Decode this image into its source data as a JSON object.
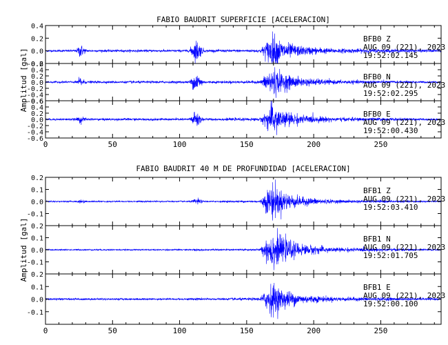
{
  "chart_data": [
    {
      "type": "line",
      "title": "FABIO BAUDRIT SUPERFICIE [ACELERACION]",
      "ylabel": "Amplitud [gal]",
      "xlabel": "",
      "xlim": [
        0,
        295
      ],
      "xticks": [
        0,
        50,
        100,
        150,
        200,
        250
      ],
      "color": "#0000ff",
      "series": [
        {
          "name": "BFB0 Z",
          "date": "AUG 09 (221), 2023",
          "time": "19:52:02.145",
          "ylim": [
            -0.2,
            0.4
          ],
          "yticks": [
            0.4,
            0.2,
            0.0,
            -0.2
          ],
          "ytick_labels": [
            "0.4",
            "0.2",
            "0.0",
            "-0.2"
          ],
          "envelope": [
            {
              "x": 0,
              "amp": 0.018
            },
            {
              "x": 23,
              "amp": 0.02
            },
            {
              "x": 26,
              "amp": 0.13
            },
            {
              "x": 28,
              "amp": 0.07
            },
            {
              "x": 31,
              "amp": 0.02
            },
            {
              "x": 107,
              "amp": 0.02
            },
            {
              "x": 110,
              "amp": 0.12
            },
            {
              "x": 113,
              "amp": 0.2
            },
            {
              "x": 116,
              "amp": 0.08
            },
            {
              "x": 119,
              "amp": 0.02
            },
            {
              "x": 160,
              "amp": 0.025
            },
            {
              "x": 165,
              "amp": 0.16
            },
            {
              "x": 170,
              "amp": 0.3
            },
            {
              "x": 176,
              "amp": 0.16
            },
            {
              "x": 190,
              "amp": 0.08
            },
            {
              "x": 215,
              "amp": 0.04
            },
            {
              "x": 295,
              "amp": 0.02
            }
          ]
        },
        {
          "name": "BFB0 N",
          "date": "AUG 09 (221), 2023",
          "time": "19:52:02.295",
          "ylim": [
            -0.6,
            0.6
          ],
          "yticks": [
            0.6,
            0.4,
            0.2,
            0.0,
            -0.2,
            -0.4,
            -0.6
          ],
          "ytick_labels": [
            "0.6",
            "0.4",
            "0.2",
            "0.0",
            "-0.2",
            "-0.4",
            "-0.6"
          ],
          "envelope": [
            {
              "x": 0,
              "amp": 0.03
            },
            {
              "x": 23,
              "amp": 0.04
            },
            {
              "x": 26,
              "amp": 0.2
            },
            {
              "x": 28,
              "amp": 0.1
            },
            {
              "x": 31,
              "amp": 0.04
            },
            {
              "x": 107,
              "amp": 0.04
            },
            {
              "x": 110,
              "amp": 0.22
            },
            {
              "x": 113,
              "amp": 0.36
            },
            {
              "x": 116,
              "amp": 0.15
            },
            {
              "x": 119,
              "amp": 0.04
            },
            {
              "x": 160,
              "amp": 0.05
            },
            {
              "x": 165,
              "amp": 0.3
            },
            {
              "x": 170,
              "amp": 0.55
            },
            {
              "x": 176,
              "amp": 0.3
            },
            {
              "x": 190,
              "amp": 0.15
            },
            {
              "x": 215,
              "amp": 0.07
            },
            {
              "x": 295,
              "amp": 0.03
            }
          ]
        },
        {
          "name": "BFB0 E",
          "date": "AUG 09 (221), 2023",
          "time": "19:52:00.430",
          "ylim": [
            -0.6,
            0.6
          ],
          "yticks": [
            0.6,
            0.4,
            0.2,
            0.0,
            -0.2,
            -0.4,
            -0.6
          ],
          "ytick_labels": [
            "0.6",
            "0.4",
            "0.2",
            "0.0",
            "-0.2",
            "-0.4",
            "-0.6"
          ],
          "envelope": [
            {
              "x": 0,
              "amp": 0.03
            },
            {
              "x": 23,
              "amp": 0.04
            },
            {
              "x": 26,
              "amp": 0.16
            },
            {
              "x": 28,
              "amp": 0.08
            },
            {
              "x": 31,
              "amp": 0.04
            },
            {
              "x": 107,
              "amp": 0.04
            },
            {
              "x": 110,
              "amp": 0.2
            },
            {
              "x": 113,
              "amp": 0.3
            },
            {
              "x": 116,
              "amp": 0.12
            },
            {
              "x": 119,
              "amp": 0.04
            },
            {
              "x": 160,
              "amp": 0.05
            },
            {
              "x": 165,
              "amp": 0.3
            },
            {
              "x": 170,
              "amp": 0.58
            },
            {
              "x": 176,
              "amp": 0.3
            },
            {
              "x": 190,
              "amp": 0.15
            },
            {
              "x": 215,
              "amp": 0.07
            },
            {
              "x": 295,
              "amp": 0.03
            }
          ]
        }
      ]
    },
    {
      "type": "line",
      "title": "FABIO BAUDRIT 40 M DE PROFUNDIDAD [ACELERACION]",
      "ylabel": "Amplitud [gal]",
      "xlabel": "",
      "xlim": [
        0,
        295
      ],
      "xticks": [
        0,
        50,
        100,
        150,
        200,
        250
      ],
      "color": "#0000ff",
      "series": [
        {
          "name": "BFB1 Z",
          "date": "AUG 09 (221), 2023",
          "time": "19:52:03.410",
          "ylim": [
            -0.2,
            0.2
          ],
          "yticks": [
            0.2,
            0.1,
            0.0,
            -0.1
          ],
          "ytick_labels": [
            "0.2",
            "0.1",
            "0.0",
            "-0.1"
          ],
          "envelope": [
            {
              "x": 0,
              "amp": 0.006
            },
            {
              "x": 23,
              "amp": 0.006
            },
            {
              "x": 27,
              "amp": 0.02
            },
            {
              "x": 31,
              "amp": 0.006
            },
            {
              "x": 108,
              "amp": 0.006
            },
            {
              "x": 113,
              "amp": 0.03
            },
            {
              "x": 118,
              "amp": 0.006
            },
            {
              "x": 160,
              "amp": 0.01
            },
            {
              "x": 165,
              "amp": 0.1
            },
            {
              "x": 169,
              "amp": 0.17
            },
            {
              "x": 175,
              "amp": 0.1
            },
            {
              "x": 190,
              "amp": 0.04
            },
            {
              "x": 215,
              "amp": 0.015
            },
            {
              "x": 295,
              "amp": 0.006
            }
          ]
        },
        {
          "name": "BFB1 N",
          "date": "AUG 09 (221), 2023",
          "time": "19:52:01.705",
          "ylim": [
            -0.2,
            0.2
          ],
          "yticks": [
            0.2,
            0.1,
            0.0,
            -0.1
          ],
          "ytick_labels": [
            "0.2",
            "0.1",
            "0.0",
            "-0.1"
          ],
          "envelope": [
            {
              "x": 0,
              "amp": 0.006
            },
            {
              "x": 108,
              "amp": 0.006
            },
            {
              "x": 113,
              "amp": 0.012
            },
            {
              "x": 118,
              "amp": 0.006
            },
            {
              "x": 160,
              "amp": 0.01
            },
            {
              "x": 165,
              "amp": 0.1
            },
            {
              "x": 169,
              "amp": 0.18
            },
            {
              "x": 175,
              "amp": 0.11
            },
            {
              "x": 190,
              "amp": 0.05
            },
            {
              "x": 215,
              "amp": 0.02
            },
            {
              "x": 295,
              "amp": 0.006
            }
          ]
        },
        {
          "name": "BFB1 E",
          "date": "AUG 09 (221), 2023",
          "time": "19:52:00.100",
          "ylim": [
            -0.2,
            0.2
          ],
          "yticks": [
            0.2,
            0.1,
            0.0,
            -0.1
          ],
          "ytick_labels": [
            "0.2",
            "0.1",
            "0.0",
            "-0.1"
          ],
          "envelope": [
            {
              "x": 0,
              "amp": 0.008
            },
            {
              "x": 108,
              "amp": 0.008
            },
            {
              "x": 113,
              "amp": 0.012
            },
            {
              "x": 118,
              "amp": 0.008
            },
            {
              "x": 160,
              "amp": 0.012
            },
            {
              "x": 165,
              "amp": 0.09
            },
            {
              "x": 169,
              "amp": 0.14
            },
            {
              "x": 175,
              "amp": 0.09
            },
            {
              "x": 190,
              "amp": 0.04
            },
            {
              "x": 215,
              "amp": 0.018
            },
            {
              "x": 295,
              "amp": 0.008
            }
          ]
        }
      ]
    }
  ]
}
